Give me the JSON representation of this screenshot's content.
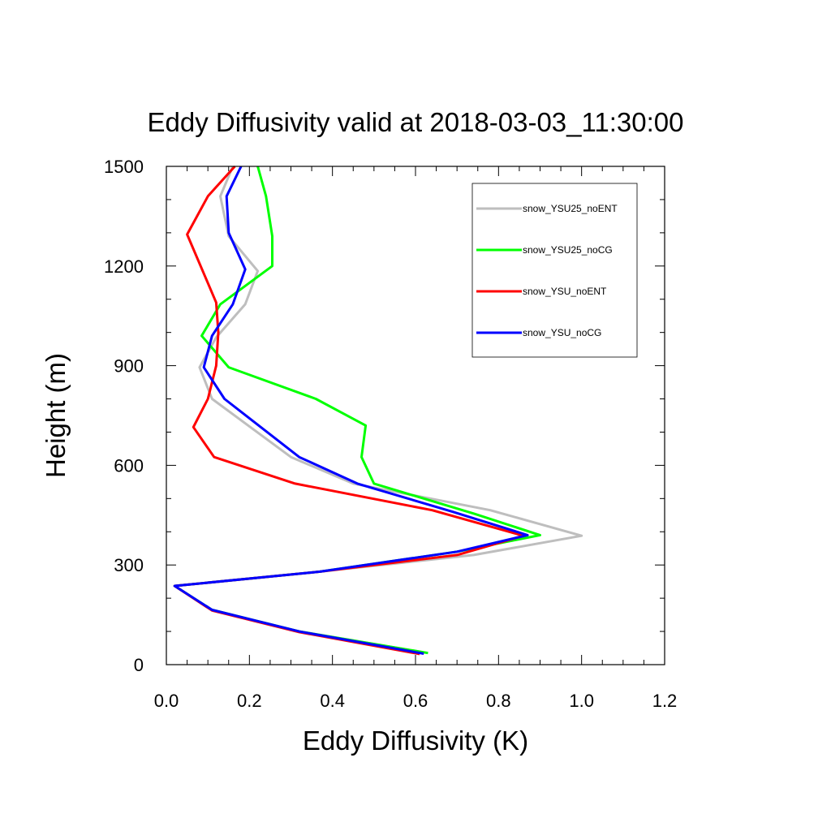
{
  "chart_data": {
    "type": "line",
    "title": "Eddy Diffusivity valid at 2018-03-03_11:30:00",
    "xlabel": "Eddy Diffusivity (K)",
    "ylabel": "Height (m)",
    "xlim": [
      0.0,
      1.2
    ],
    "ylim": [
      0,
      1500
    ],
    "xticks": [
      "0.0",
      "0.2",
      "0.4",
      "0.6",
      "0.8",
      "1.0",
      "1.2"
    ],
    "yticks": [
      "0",
      "300",
      "600",
      "900",
      "1200",
      "1500"
    ],
    "legend_position": "top-right",
    "series": [
      {
        "name": "snow_YSU25_noENT",
        "color": "#bebebe",
        "points": [
          [
            0.63,
            35
          ],
          [
            0.32,
            100
          ],
          [
            0.11,
            165
          ],
          [
            0.02,
            237
          ],
          [
            0.37,
            280
          ],
          [
            0.74,
            330
          ],
          [
            1.0,
            388
          ],
          [
            0.78,
            465
          ],
          [
            0.45,
            545
          ],
          [
            0.3,
            625
          ],
          [
            0.11,
            800
          ],
          [
            0.08,
            895
          ],
          [
            0.12,
            985
          ],
          [
            0.19,
            1085
          ],
          [
            0.22,
            1185
          ],
          [
            0.15,
            1290
          ],
          [
            0.13,
            1410
          ],
          [
            0.16,
            1500
          ]
        ]
      },
      {
        "name": "snow_YSU25_noCG",
        "color": "#00ff00",
        "points": [
          [
            0.63,
            35
          ],
          [
            0.32,
            100
          ],
          [
            0.11,
            165
          ],
          [
            0.02,
            237
          ],
          [
            0.37,
            280
          ],
          [
            0.7,
            340
          ],
          [
            0.9,
            390
          ],
          [
            0.74,
            455
          ],
          [
            0.5,
            545
          ],
          [
            0.47,
            625
          ],
          [
            0.48,
            720
          ],
          [
            0.36,
            800
          ],
          [
            0.15,
            895
          ],
          [
            0.085,
            990
          ],
          [
            0.13,
            1085
          ],
          [
            0.255,
            1200
          ],
          [
            0.255,
            1290
          ],
          [
            0.24,
            1410
          ],
          [
            0.22,
            1500
          ]
        ]
      },
      {
        "name": "snow_YSU_noENT",
        "color": "#ff0000",
        "points": [
          [
            0.61,
            32
          ],
          [
            0.32,
            98
          ],
          [
            0.11,
            163
          ],
          [
            0.02,
            237
          ],
          [
            0.37,
            280
          ],
          [
            0.7,
            330
          ],
          [
            0.86,
            388
          ],
          [
            0.64,
            465
          ],
          [
            0.31,
            545
          ],
          [
            0.115,
            625
          ],
          [
            0.065,
            715
          ],
          [
            0.1,
            800
          ],
          [
            0.12,
            900
          ],
          [
            0.125,
            1000
          ],
          [
            0.12,
            1090
          ],
          [
            0.05,
            1295
          ],
          [
            0.1,
            1410
          ],
          [
            0.165,
            1500
          ]
        ]
      },
      {
        "name": "snow_YSU_noCG",
        "color": "#0000ff",
        "points": [
          [
            0.62,
            33
          ],
          [
            0.32,
            100
          ],
          [
            0.11,
            165
          ],
          [
            0.02,
            237
          ],
          [
            0.37,
            280
          ],
          [
            0.7,
            340
          ],
          [
            0.87,
            390
          ],
          [
            0.69,
            460
          ],
          [
            0.46,
            545
          ],
          [
            0.32,
            625
          ],
          [
            0.14,
            800
          ],
          [
            0.09,
            895
          ],
          [
            0.11,
            990
          ],
          [
            0.16,
            1085
          ],
          [
            0.19,
            1190
          ],
          [
            0.15,
            1300
          ],
          [
            0.145,
            1410
          ],
          [
            0.18,
            1500
          ]
        ]
      }
    ]
  }
}
